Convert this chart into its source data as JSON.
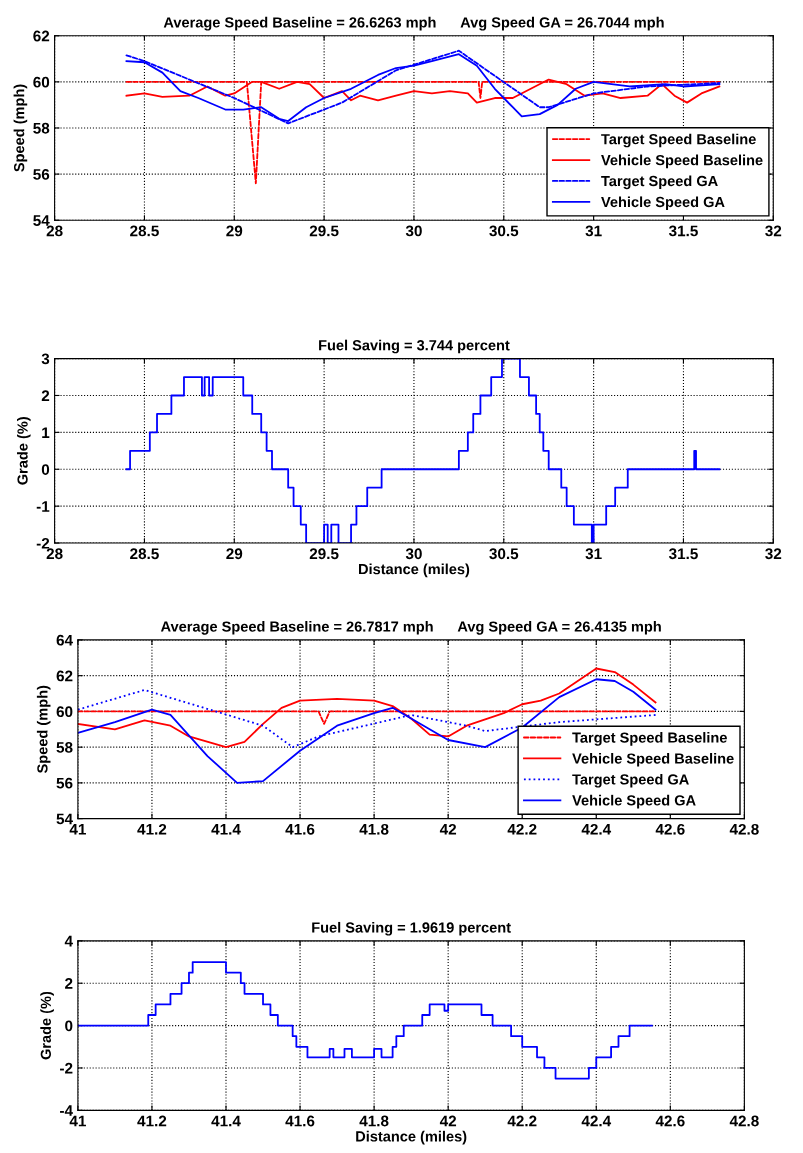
{
  "chart_data": [
    {
      "type": "line",
      "title": "Average Speed Baseline = 26.6263 mph      Avg Speed GA = 26.7044 mph",
      "ylabel": "Speed (mph)",
      "xlim": [
        28,
        32
      ],
      "xticks": [
        28,
        28.5,
        29,
        29.5,
        30,
        30.5,
        31,
        31.5,
        32
      ],
      "ylim": [
        54,
        62
      ],
      "yticks": [
        54,
        56,
        58,
        60,
        62
      ],
      "grid": true,
      "legend": "bottom right",
      "series": [
        {
          "name": "Target Speed Baseline",
          "color": "#ff0000",
          "line_style": "dashed",
          "x": [
            28.4,
            29.07,
            29.12,
            29.15,
            30.36,
            30.37,
            30.38,
            31.7
          ],
          "values": [
            60,
            60,
            55.6,
            60,
            60,
            59.3,
            60,
            60
          ]
        },
        {
          "name": "Vehicle Speed Baseline",
          "color": "#ff0000",
          "line_style": "solid",
          "x": [
            28.4,
            28.5,
            28.6,
            28.75,
            28.85,
            28.95,
            29.0,
            29.1,
            29.15,
            29.25,
            29.35,
            29.42,
            29.5,
            29.6,
            29.65,
            29.7,
            29.8,
            29.9,
            30.0,
            30.1,
            30.2,
            30.3,
            30.35,
            30.45,
            30.55,
            30.65,
            30.75,
            30.85,
            30.95,
            31.05,
            31.15,
            31.3,
            31.38,
            31.45,
            31.52,
            31.6,
            31.7
          ],
          "values": [
            59.4,
            59.5,
            59.35,
            59.4,
            59.8,
            59.4,
            59.5,
            60.0,
            60.0,
            59.7,
            60.0,
            59.9,
            59.3,
            59.6,
            59.2,
            59.4,
            59.2,
            59.4,
            59.6,
            59.5,
            59.6,
            59.5,
            59.1,
            59.3,
            59.3,
            59.7,
            60.1,
            59.9,
            59.4,
            59.5,
            59.3,
            59.4,
            59.9,
            59.4,
            59.1,
            59.5,
            59.8
          ]
        },
        {
          "name": "Target Speed GA",
          "color": "#0000ff",
          "line_style": "dashed",
          "x": [
            28.4,
            28.5,
            29.0,
            29.3,
            29.6,
            29.9,
            30.25,
            30.7,
            30.75,
            31.0,
            31.3,
            31.7
          ],
          "values": [
            61.15,
            60.9,
            59.3,
            58.2,
            59.1,
            60.5,
            61.35,
            58.9,
            58.9,
            59.5,
            59.8,
            59.95
          ]
        },
        {
          "name": "Vehicle Speed GA",
          "color": "#0000ff",
          "line_style": "solid",
          "x": [
            28.4,
            28.5,
            28.6,
            28.7,
            28.8,
            28.95,
            29.05,
            29.15,
            29.25,
            29.3,
            29.4,
            29.5,
            29.65,
            29.8,
            29.9,
            30.0,
            30.1,
            30.25,
            30.35,
            30.45,
            30.55,
            30.6,
            30.7,
            30.8,
            30.9,
            31.0,
            31.1,
            31.2,
            31.4,
            31.5,
            31.7
          ],
          "values": [
            60.9,
            60.85,
            60.4,
            59.6,
            59.3,
            58.8,
            58.8,
            58.9,
            58.4,
            58.3,
            58.9,
            59.3,
            59.7,
            60.3,
            60.6,
            60.7,
            60.9,
            61.2,
            60.7,
            59.7,
            58.9,
            58.5,
            58.6,
            59.0,
            59.7,
            60.0,
            59.9,
            59.8,
            59.9,
            59.8,
            59.9
          ]
        }
      ]
    },
    {
      "type": "step",
      "title": "Fuel Saving = 3.744 percent",
      "xlabel": "Distance (miles)",
      "ylabel": "Grade (%)",
      "xlim": [
        28,
        32
      ],
      "xticks": [
        28,
        28.5,
        29,
        29.5,
        30,
        30.5,
        31,
        31.5,
        32
      ],
      "ylim": [
        -2,
        3
      ],
      "yticks": [
        -2,
        -1,
        0,
        1,
        2,
        3
      ],
      "grid": true,
      "series": [
        {
          "color": "#0000ff",
          "x": [
            28.4,
            28.42,
            28.53,
            28.57,
            28.65,
            28.72,
            28.82,
            28.835,
            28.86,
            28.88,
            29.05,
            29.1,
            29.15,
            29.18,
            29.21,
            29.3,
            29.33,
            29.37,
            29.4,
            29.5,
            29.52,
            29.54,
            29.58,
            29.65,
            29.68,
            29.74,
            29.82,
            30.25,
            30.3,
            30.33,
            30.37,
            30.43,
            30.49,
            30.59,
            30.64,
            30.68,
            30.7,
            30.72,
            30.75,
            30.82,
            30.85,
            30.89,
            30.99,
            31.0,
            31.07,
            31.12,
            31.19,
            31.56,
            31.57,
            31.7
          ],
          "values": [
            0,
            0.5,
            1,
            1.5,
            2,
            2.5,
            2,
            2.5,
            2,
            2.5,
            2,
            1.5,
            1,
            0.5,
            0,
            -0.5,
            -1,
            -1.5,
            -2,
            -1.5,
            -2,
            -1.5,
            -2,
            -1.5,
            -1,
            -0.5,
            0,
            0.5,
            1,
            1.5,
            2,
            2.5,
            3,
            2.5,
            2,
            1.5,
            1,
            0.5,
            0,
            -0.5,
            -1,
            -1.5,
            -2,
            -1.5,
            -1,
            -0.5,
            0,
            0.5,
            0,
            0
          ]
        }
      ]
    },
    {
      "type": "line",
      "title": "Average Speed Baseline = 26.7817 mph      Avg Speed GA = 26.4135 mph",
      "ylabel": "Speed (mph)",
      "xlim": [
        41,
        42.8
      ],
      "xticks": [
        41,
        41.2,
        41.4,
        41.6,
        41.8,
        42,
        42.2,
        42.4,
        42.6,
        42.8
      ],
      "ylim": [
        54,
        64
      ],
      "yticks": [
        54,
        56,
        58,
        60,
        62,
        64
      ],
      "grid": true,
      "legend": "bottom right",
      "series": [
        {
          "name": "Target Speed Baseline",
          "color": "#ff0000",
          "line_style": "dashed",
          "x": [
            41,
            41.65,
            41.665,
            41.68,
            42.56
          ],
          "values": [
            60,
            60,
            59.3,
            60,
            60
          ]
        },
        {
          "name": "Vehicle Speed Baseline",
          "color": "#ff0000",
          "line_style": "solid",
          "x": [
            41,
            41.1,
            41.18,
            41.25,
            41.3,
            41.4,
            41.45,
            41.5,
            41.55,
            41.6,
            41.7,
            41.8,
            41.85,
            41.9,
            41.95,
            42.0,
            42.05,
            42.15,
            42.2,
            42.25,
            42.3,
            42.4,
            42.45,
            42.5,
            42.56
          ],
          "values": [
            59.3,
            59.0,
            59.5,
            59.2,
            58.6,
            58.0,
            58.3,
            59.3,
            60.2,
            60.6,
            60.7,
            60.6,
            60.3,
            59.6,
            58.7,
            58.6,
            59.2,
            59.9,
            60.4,
            60.6,
            61.0,
            62.4,
            62.2,
            61.5,
            60.5
          ]
        },
        {
          "name": "Target Speed GA",
          "color": "#0000ff",
          "line_style": "dotted",
          "x": [
            41,
            41.18,
            41.5,
            41.58,
            41.65,
            41.9,
            42.05,
            42.1,
            42.3,
            42.56
          ],
          "values": [
            60.1,
            61.2,
            59.2,
            58.0,
            58.6,
            59.8,
            59.2,
            58.9,
            59.4,
            59.8
          ]
        },
        {
          "name": "Vehicle Speed GA",
          "color": "#0000ff",
          "line_style": "solid",
          "x": [
            41,
            41.1,
            41.2,
            41.25,
            41.35,
            41.43,
            41.5,
            41.6,
            41.7,
            41.8,
            41.85,
            41.9,
            42.0,
            42.1,
            42.2,
            42.3,
            42.4,
            42.45,
            42.5,
            42.56
          ],
          "values": [
            58.8,
            59.4,
            60.1,
            59.8,
            57.5,
            56.0,
            56.1,
            57.8,
            59.2,
            59.9,
            60.2,
            59.6,
            58.4,
            58.0,
            59.1,
            60.8,
            61.8,
            61.7,
            61.1,
            60.1
          ]
        }
      ]
    },
    {
      "type": "step",
      "title": "Fuel Saving = 1.9619 percent",
      "xlabel": "Distance (miles)",
      "ylabel": "Grade (%)",
      "xlim": [
        41,
        42.8
      ],
      "xticks": [
        41,
        41.2,
        41.4,
        41.6,
        41.8,
        42,
        42.2,
        42.4,
        42.6,
        42.8
      ],
      "ylim": [
        -4,
        4
      ],
      "yticks": [
        -4,
        -2,
        0,
        2,
        4
      ],
      "grid": true,
      "series": [
        {
          "color": "#0000ff",
          "x": [
            41,
            41.19,
            41.21,
            41.25,
            41.28,
            41.3,
            41.31,
            41.4,
            41.44,
            41.45,
            41.5,
            41.52,
            41.54,
            41.58,
            41.59,
            41.62,
            41.68,
            41.69,
            41.72,
            41.74,
            41.8,
            41.82,
            41.85,
            41.86,
            41.88,
            41.93,
            41.95,
            41.99,
            42.0,
            42.09,
            42.12,
            42.17,
            42.2,
            42.24,
            42.26,
            42.29,
            42.38,
            42.4,
            42.44,
            42.46,
            42.49,
            42.55
          ],
          "values": [
            0,
            0.5,
            1,
            1.5,
            2,
            2.5,
            3,
            2.5,
            2,
            1.5,
            1,
            0.5,
            0,
            -0.5,
            -1,
            -1.5,
            -1.1,
            -1.5,
            -1.1,
            -1.5,
            -1.1,
            -1.5,
            -1,
            -0.5,
            0,
            0.5,
            1,
            0.7,
            1,
            0.5,
            0,
            -0.5,
            -1,
            -1.5,
            -2,
            -2.5,
            -2,
            -1.5,
            -1,
            -0.5,
            0,
            0
          ]
        }
      ]
    }
  ]
}
